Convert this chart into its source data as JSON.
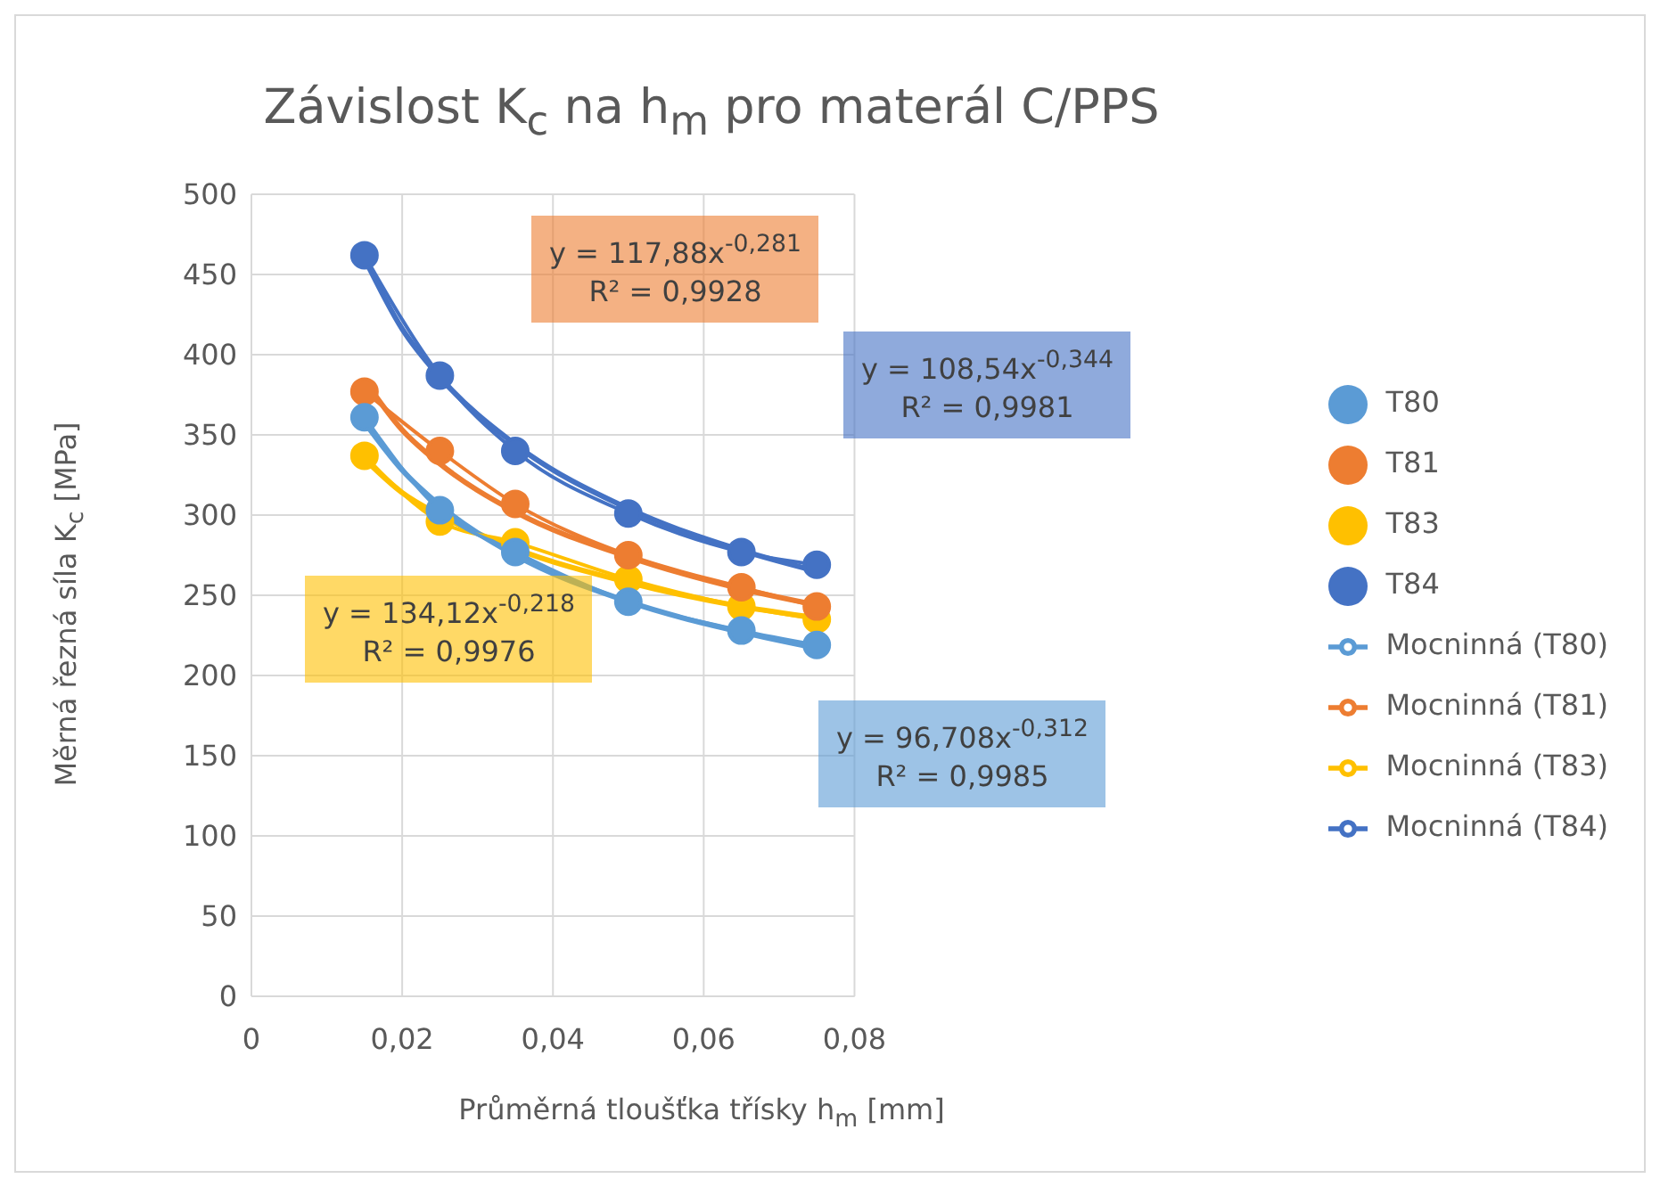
{
  "chart_data": {
    "type": "line",
    "title": "Závislost K$_{c}$ na h$_{m}$ pro materál C/PPS",
    "xlabel": "Průměrná tloušťka třísky h$_{m}$ [mm]",
    "ylabel": "Měrná řezná síla K$_{c}$ [MPa]",
    "xlim": [
      0,
      0.08
    ],
    "xticks": [
      {
        "value": 0,
        "label": "0"
      },
      {
        "value": 0.02,
        "label": "0,02"
      },
      {
        "value": 0.04,
        "label": "0,04"
      },
      {
        "value": 0.06,
        "label": "0,06"
      },
      {
        "value": 0.08,
        "label": "0,08"
      }
    ],
    "ylim": [
      0,
      500
    ],
    "yticks": [
      0,
      50,
      100,
      150,
      200,
      250,
      300,
      350,
      400,
      450,
      500
    ],
    "grid": true,
    "legend": "right",
    "marker": "circle",
    "series": [
      {
        "name": "T80",
        "color": "#5b9bd5",
        "x": [
          0.015,
          0.025,
          0.035,
          0.05,
          0.065,
          0.075
        ],
        "values": [
          361,
          303,
          277,
          246,
          228,
          219
        ]
      },
      {
        "name": "T81",
        "color": "#ed7d31",
        "x": [
          0.015,
          0.025,
          0.035,
          0.05,
          0.065,
          0.075
        ],
        "values": [
          377,
          340,
          307,
          275,
          255,
          243
        ]
      },
      {
        "name": "T83",
        "color": "#ffc000",
        "x": [
          0.015,
          0.025,
          0.035,
          0.05,
          0.065,
          0.075
        ],
        "values": [
          337,
          296,
          283,
          260,
          243,
          235
        ]
      },
      {
        "name": "T84",
        "color": "#4472c4",
        "x": [
          0.015,
          0.025,
          0.035,
          0.05,
          0.065,
          0.075
        ],
        "values": [
          462,
          387,
          340,
          301,
          277,
          269
        ]
      },
      {
        "name": "Mocninná (T80)",
        "color": "#5b9bd5",
        "marker": "none",
        "x": [
          0.015,
          0.02,
          0.025,
          0.035,
          0.05,
          0.065,
          0.075
        ],
        "values": [
          358,
          328,
          306,
          275,
          246,
          227,
          217
        ]
      },
      {
        "name": "Mocninná (T81)",
        "color": "#ed7d31",
        "marker": "none",
        "x": [
          0.015,
          0.02,
          0.025,
          0.035,
          0.05,
          0.065,
          0.075
        ],
        "values": [
          384,
          353,
          332,
          302,
          274,
          254,
          244
        ]
      },
      {
        "name": "Mocninná (T83)",
        "color": "#ffc000",
        "marker": "none",
        "x": [
          0.015,
          0.02,
          0.025,
          0.035,
          0.05,
          0.065,
          0.075
        ],
        "values": [
          335,
          314,
          300,
          279,
          258,
          243,
          236
        ]
      },
      {
        "name": "Mocninná (T84)",
        "color": "#4472c4",
        "marker": "none",
        "x": [
          0.015,
          0.02,
          0.025,
          0.035,
          0.05,
          0.065,
          0.075
        ],
        "values": [
          460,
          416,
          386,
          344,
          304,
          278,
          265
        ]
      }
    ],
    "annotations": [
      "y = 96,708x$^{-0,312}$\nR² = 0,9985",
      "y = 117,88x$^{-0,281}$\nR² = 0,9928",
      "y = 134,12x$^{-0,218}$\nR² = 0,9976",
      "y = 108,54x$^{-0,344}$\nR² = 0,9981"
    ]
  }
}
